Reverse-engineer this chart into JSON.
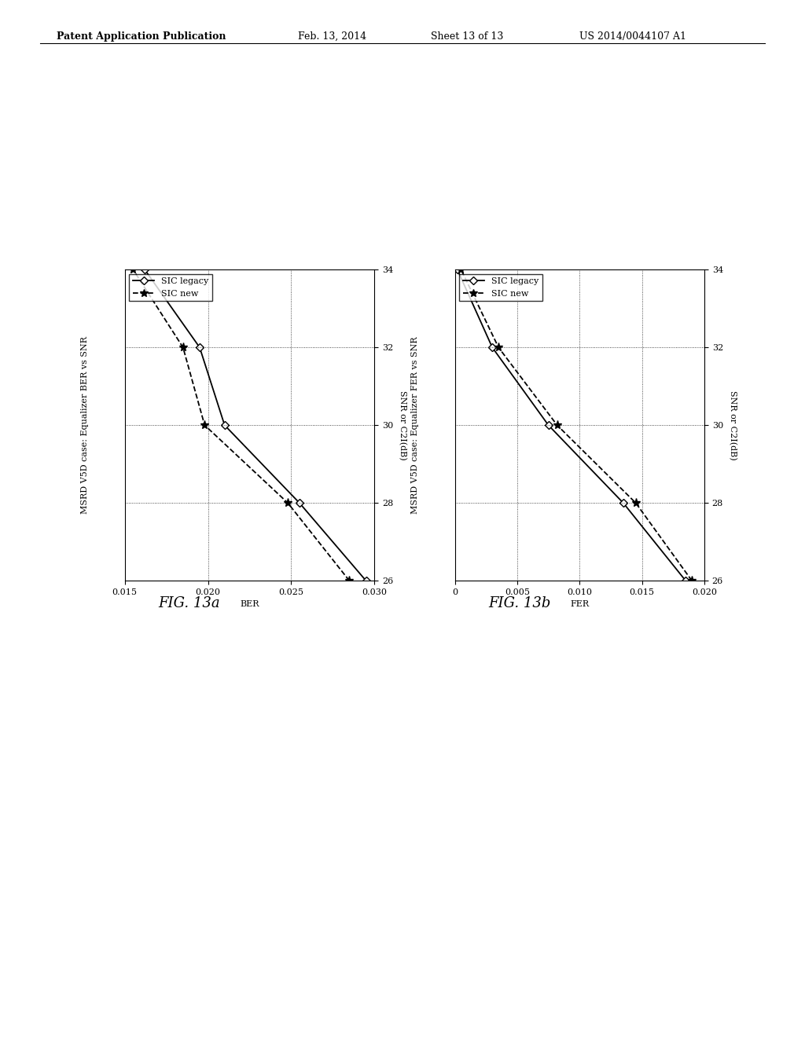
{
  "fig13a": {
    "title": "MSRD V5D case: Equalizer BER vs SNR",
    "xlabel": "SNR or C2I(dB)",
    "ylabel": "BER",
    "snr_axis": [
      26,
      28,
      30,
      32,
      34
    ],
    "ber_axis": [
      0.015,
      0.02,
      0.025,
      0.03
    ],
    "ber_lim": [
      0.015,
      0.03
    ],
    "snr_lim": [
      26,
      34
    ],
    "sic_legacy_snr": [
      26,
      28,
      30,
      32,
      34
    ],
    "sic_legacy_ber": [
      0.0295,
      0.0255,
      0.021,
      0.0195,
      0.0162
    ],
    "sic_new_snr": [
      26,
      28,
      30,
      32,
      34
    ],
    "sic_new_ber": [
      0.0285,
      0.0248,
      0.0198,
      0.0185,
      0.0155
    ],
    "fig_label": "FIG. 13a"
  },
  "fig13b": {
    "title": "MSRD V5D case: Equalizer FER vs SNR",
    "xlabel": "SNR or C2I(dB)",
    "ylabel": "FER",
    "snr_axis": [
      26,
      28,
      30,
      32,
      34
    ],
    "fer_axis": [
      0,
      0.005,
      0.01,
      0.015,
      0.02
    ],
    "fer_lim": [
      0,
      0.02
    ],
    "snr_lim": [
      26,
      34
    ],
    "sic_legacy_snr": [
      26,
      28,
      30,
      32,
      34
    ],
    "sic_legacy_fer": [
      0.0185,
      0.0135,
      0.0075,
      0.003,
      0.0002
    ],
    "sic_new_snr": [
      26,
      28,
      30,
      32,
      34
    ],
    "sic_new_fer": [
      0.019,
      0.0145,
      0.0082,
      0.0035,
      0.0005
    ],
    "fig_label": "FIG. 13b"
  },
  "legend_labels": [
    "SIC legacy",
    "SIC new"
  ],
  "background_color": "#ffffff",
  "font_size": 8,
  "title_font_size": 8,
  "header_text": "Patent Application Publication",
  "header_date": "Feb. 13, 2014",
  "header_sheet": "Sheet 13 of 13",
  "header_patent": "US 2014/0044107 A1"
}
